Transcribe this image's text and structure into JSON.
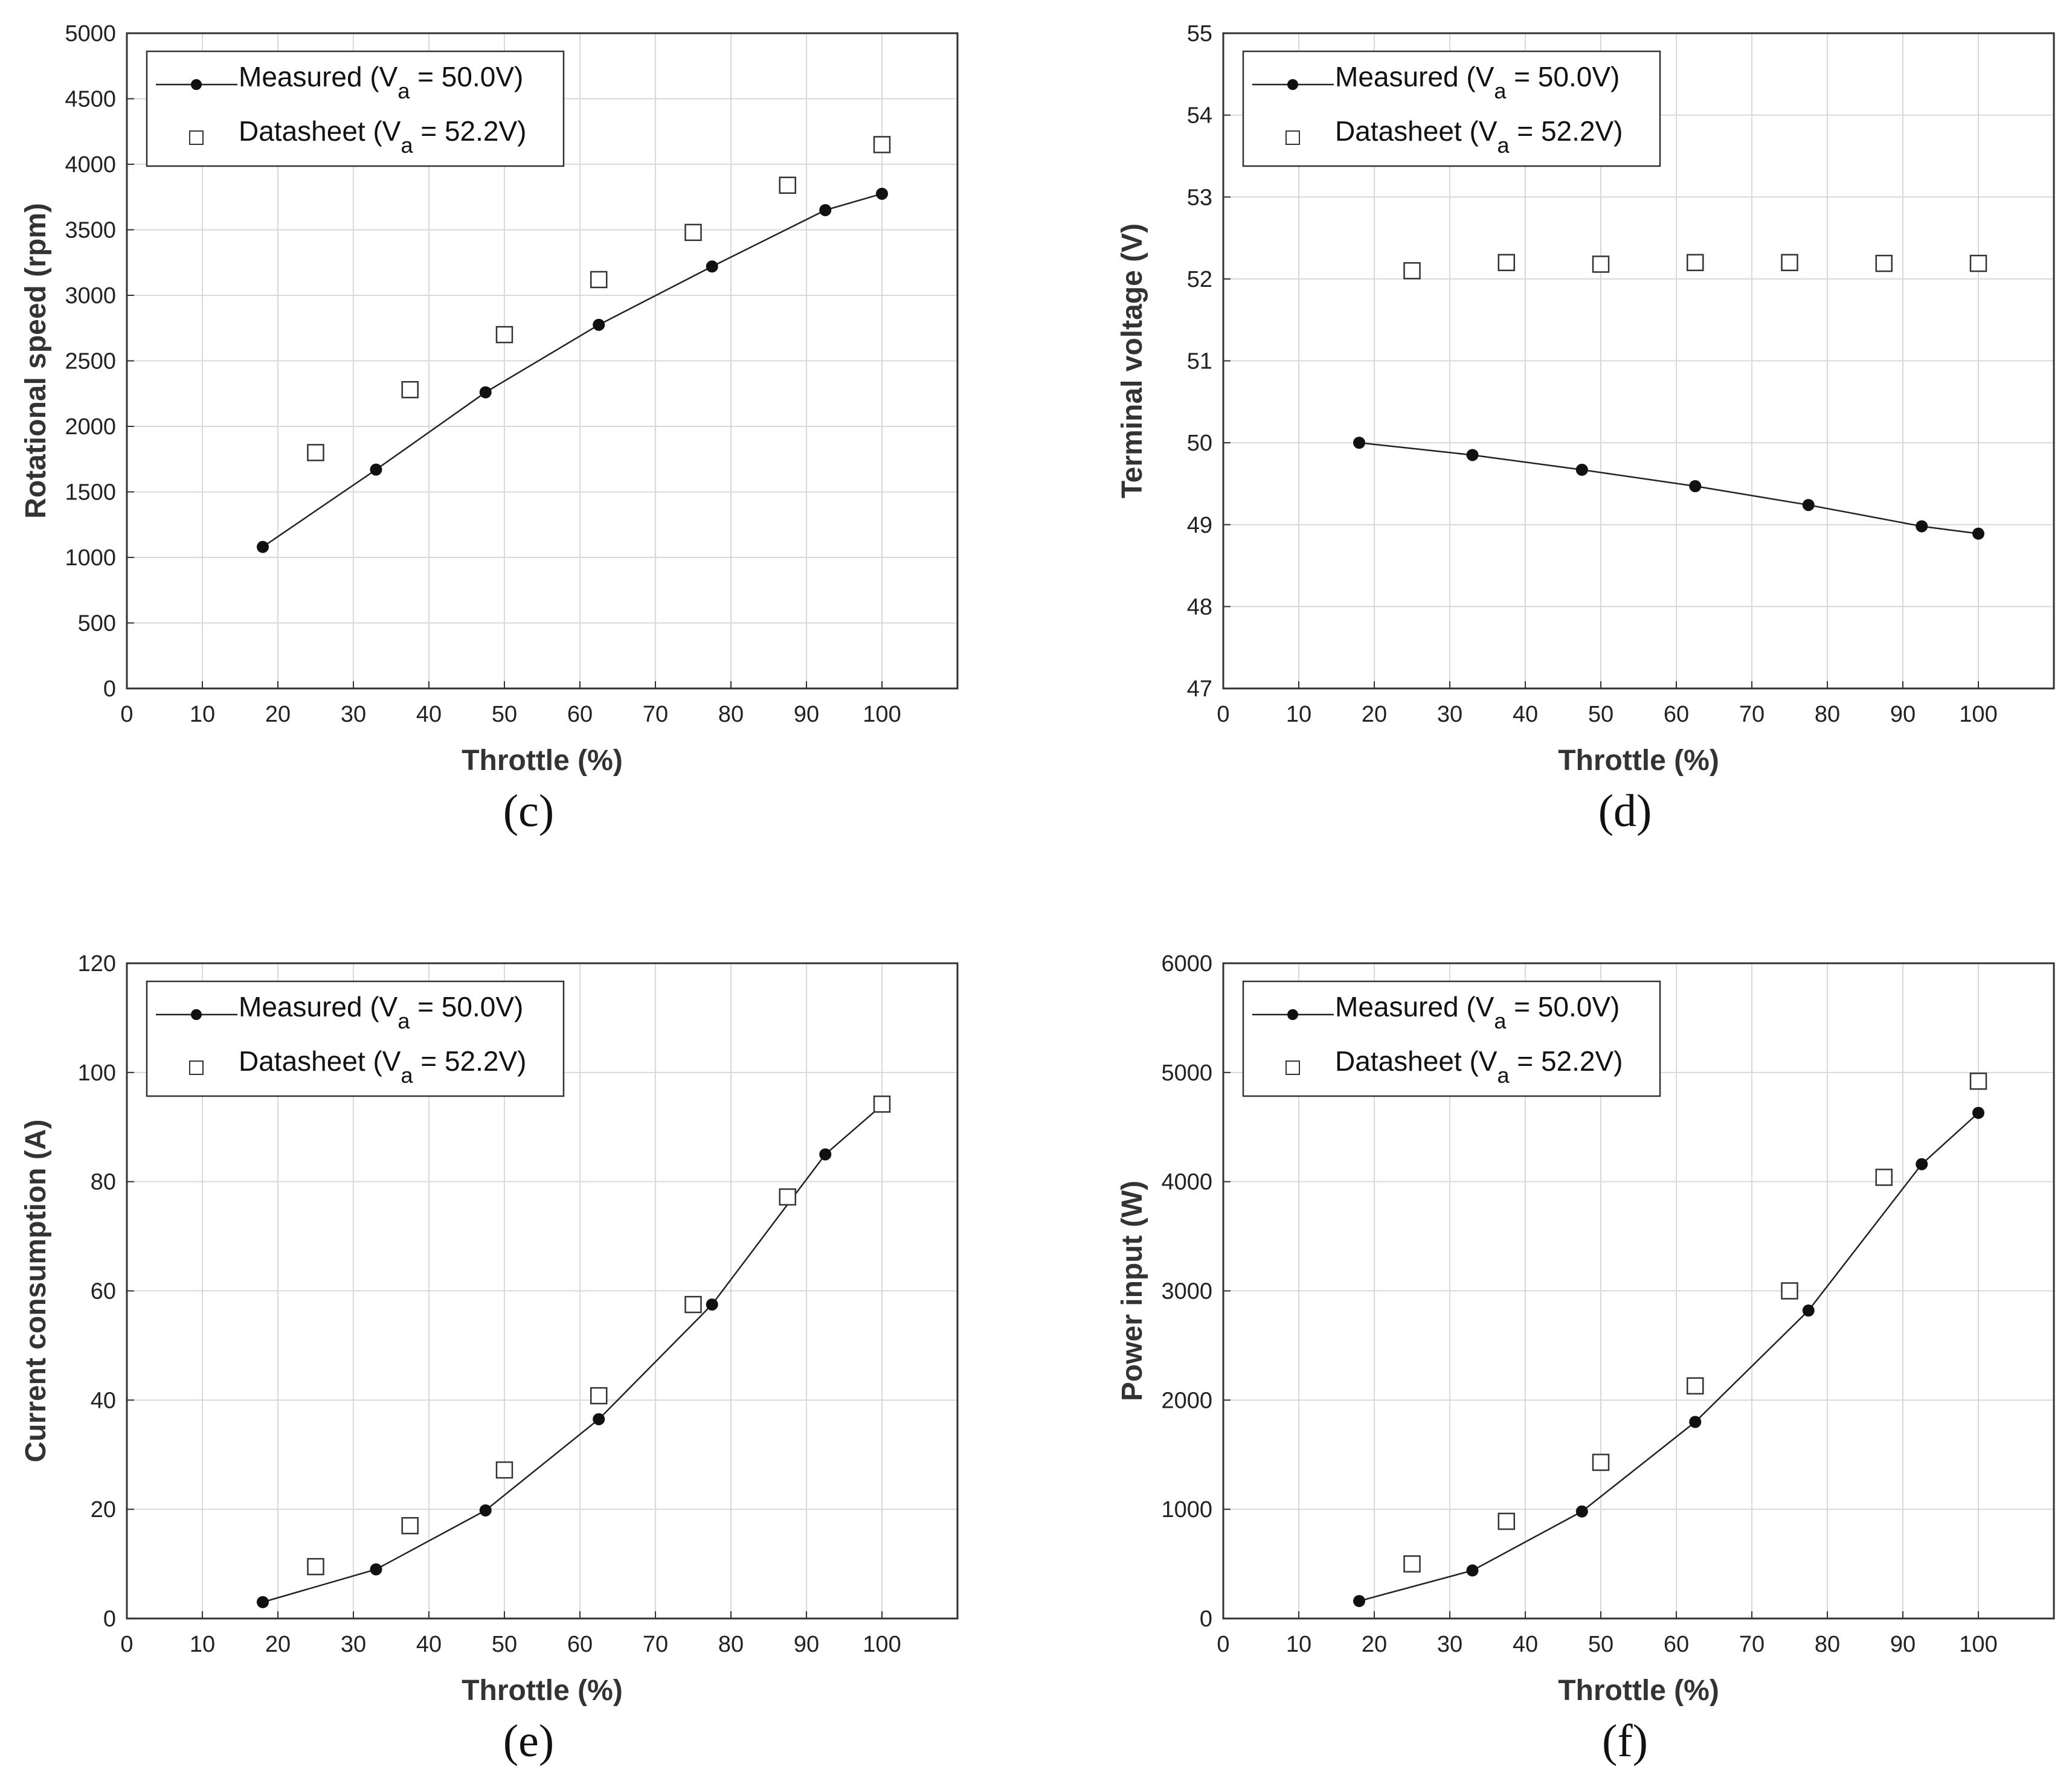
{
  "chart_data": [
    {
      "panel": "(c)",
      "type": "scatter",
      "xlabel": "Throttle (%)",
      "ylabel": "Rotational speed (rpm)",
      "xlim": [
        0,
        110
      ],
      "ylim": [
        0,
        5000
      ],
      "xticks": [
        0,
        10,
        20,
        30,
        40,
        50,
        60,
        70,
        80,
        90,
        100
      ],
      "yticks": [
        0,
        500,
        1000,
        1500,
        2000,
        2500,
        3000,
        3500,
        4000,
        4500,
        5000
      ],
      "grid": true,
      "legend": {
        "position": "top-left",
        "entries": [
          {
            "name": "Measured",
            "sub_var": "a",
            "label_pre": "Measured (V",
            "label_post": " = 50.0V)"
          },
          {
            "name": "Datasheet",
            "sub_var": "a",
            "label_pre": "Datasheet (V",
            "label_post": " = 52.2V)"
          }
        ]
      },
      "series": [
        {
          "name": "Measured (Va = 50.0V)",
          "style": "line-dot",
          "x": [
            18,
            33,
            47.5,
            62.5,
            77.5,
            92.5,
            100
          ],
          "y": [
            1080,
            1670,
            2260,
            2775,
            3220,
            3650,
            3775
          ]
        },
        {
          "name": "Datasheet (Va = 52.2V)",
          "style": "square",
          "x": [
            25,
            37.5,
            50,
            62.5,
            75,
            87.5,
            100
          ],
          "y": [
            1800,
            2280,
            2700,
            3120,
            3480,
            3840,
            4150
          ]
        }
      ]
    },
    {
      "panel": "(d)",
      "type": "scatter",
      "xlabel": "Throttle (%)",
      "ylabel": "Terminal voltage (V)",
      "xlim": [
        0,
        110
      ],
      "ylim": [
        47,
        55
      ],
      "xticks": [
        0,
        10,
        20,
        30,
        40,
        50,
        60,
        70,
        80,
        90,
        100
      ],
      "yticks": [
        47,
        48,
        49,
        50,
        51,
        52,
        53,
        54,
        55
      ],
      "grid": true,
      "legend": {
        "position": "top-left",
        "entries": [
          {
            "name": "Measured",
            "sub_var": "a",
            "label_pre": "Measured (V",
            "label_post": " = 50.0V)"
          },
          {
            "name": "Datasheet",
            "sub_var": "a",
            "label_pre": "Datasheet (V",
            "label_post": " = 52.2V)"
          }
        ]
      },
      "series": [
        {
          "name": "Measured (Va = 50.0V)",
          "style": "line-dot",
          "x": [
            18,
            33,
            47.5,
            62.5,
            77.5,
            92.5,
            100
          ],
          "y": [
            50.0,
            49.85,
            49.67,
            49.47,
            49.24,
            48.98,
            48.89
          ]
        },
        {
          "name": "Datasheet (Va = 52.2V)",
          "style": "square",
          "x": [
            25,
            37.5,
            50,
            62.5,
            75,
            87.5,
            100
          ],
          "y": [
            52.1,
            52.2,
            52.18,
            52.2,
            52.2,
            52.19,
            52.19
          ]
        }
      ]
    },
    {
      "panel": "(e)",
      "type": "scatter",
      "xlabel": "Throttle (%)",
      "ylabel": "Current consumption (A)",
      "xlim": [
        0,
        110
      ],
      "ylim": [
        0,
        120
      ],
      "xticks": [
        0,
        10,
        20,
        30,
        40,
        50,
        60,
        70,
        80,
        90,
        100
      ],
      "yticks": [
        0,
        20,
        40,
        60,
        80,
        100,
        120
      ],
      "grid": true,
      "legend": {
        "position": "top-left",
        "entries": [
          {
            "name": "Measured",
            "sub_var": "a",
            "label_pre": "Measured (V",
            "label_post": " = 50.0V)"
          },
          {
            "name": "Datasheet",
            "sub_var": "a",
            "label_pre": "Datasheet (V",
            "label_post": " = 52.2V)"
          }
        ]
      },
      "series": [
        {
          "name": "Measured (Va = 50.0V)",
          "style": "line-dot",
          "x": [
            18,
            33,
            47.5,
            62.5,
            77.5,
            92.5,
            100
          ],
          "y": [
            3,
            9,
            19.8,
            36.5,
            57.5,
            85,
            94
          ]
        },
        {
          "name": "Datasheet (Va = 52.2V)",
          "style": "square",
          "x": [
            25,
            37.5,
            50,
            62.5,
            75,
            87.5,
            100
          ],
          "y": [
            9.5,
            17,
            27.2,
            40.8,
            57.5,
            77.2,
            94.2
          ]
        }
      ]
    },
    {
      "panel": "(f)",
      "type": "scatter",
      "xlabel": "Throttle (%)",
      "ylabel": "Power input (W)",
      "xlim": [
        0,
        110
      ],
      "ylim": [
        0,
        6000
      ],
      "xticks": [
        0,
        10,
        20,
        30,
        40,
        50,
        60,
        70,
        80,
        90,
        100
      ],
      "yticks": [
        0,
        1000,
        2000,
        3000,
        4000,
        5000,
        6000
      ],
      "grid": true,
      "legend": {
        "position": "top-left",
        "entries": [
          {
            "name": "Measured",
            "sub_var": "a",
            "label_pre": "Measured (V",
            "label_post": " = 50.0V)"
          },
          {
            "name": "Datasheet",
            "sub_var": "a",
            "label_pre": "Datasheet (V",
            "label_post": " = 52.2V)"
          }
        ]
      },
      "series": [
        {
          "name": "Measured (Va = 50.0V)",
          "style": "line-dot",
          "x": [
            18,
            33,
            47.5,
            62.5,
            77.5,
            92.5,
            100
          ],
          "y": [
            160,
            440,
            980,
            1800,
            2820,
            4160,
            4630
          ]
        },
        {
          "name": "Datasheet (Va = 52.2V)",
          "style": "square",
          "x": [
            25,
            37.5,
            50,
            62.5,
            75,
            87.5,
            100
          ],
          "y": [
            500,
            890,
            1430,
            2130,
            3000,
            4040,
            4920
          ]
        }
      ]
    }
  ]
}
